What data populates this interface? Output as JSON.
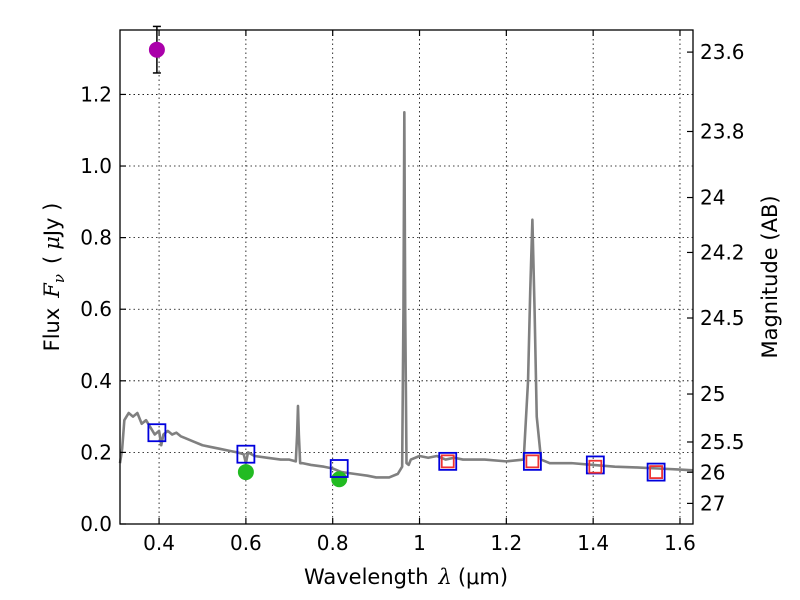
{
  "chart_data": {
    "type": "line",
    "xlabel": "Wavelength",
    "xlabel_symbol": "λ",
    "xlabel_unit": "(μm)",
    "ylabel": "Flux",
    "ylabel_symbol": "F",
    "ylabel_symbol_sub": "ν",
    "ylabel_unit_open": "(",
    "ylabel_unit_mu": "μ",
    "ylabel_unit_rest": "Jy )",
    "y2label": "Magnitude (AB)",
    "xlim": [
      0.31,
      1.63
    ],
    "ylim": [
      0.0,
      1.38
    ],
    "grid": true,
    "x_ticks": [
      {
        "value": 0.4,
        "label": "0.4"
      },
      {
        "value": 0.6,
        "label": "0.6"
      },
      {
        "value": 0.8,
        "label": "0.8"
      },
      {
        "value": 1.0,
        "label": "1"
      },
      {
        "value": 1.2,
        "label": "1.2"
      },
      {
        "value": 1.4,
        "label": "1.4"
      },
      {
        "value": 1.6,
        "label": "1.6"
      }
    ],
    "y_ticks": [
      {
        "value": 0.0,
        "label": "0.0"
      },
      {
        "value": 0.2,
        "label": "0.2"
      },
      {
        "value": 0.4,
        "label": "0.4"
      },
      {
        "value": 0.6,
        "label": "0.6"
      },
      {
        "value": 0.8,
        "label": "0.8"
      },
      {
        "value": 1.0,
        "label": "1.0"
      },
      {
        "value": 1.2,
        "label": "1.2"
      }
    ],
    "y2_ticks": [
      {
        "value": 23.6,
        "label": "23.6"
      },
      {
        "value": 23.8,
        "label": "23.8"
      },
      {
        "value": 24.0,
        "label": "24"
      },
      {
        "value": 24.2,
        "label": "24.2"
      },
      {
        "value": 24.5,
        "label": "24.5"
      },
      {
        "value": 25.0,
        "label": "25"
      },
      {
        "value": 25.5,
        "label": "25.5"
      },
      {
        "value": 26.0,
        "label": "26"
      },
      {
        "value": 27.0,
        "label": "27"
      }
    ],
    "spectrum": {
      "color": "#808080",
      "x": [
        0.31,
        0.315,
        0.32,
        0.325,
        0.33,
        0.34,
        0.35,
        0.36,
        0.37,
        0.38,
        0.39,
        0.4,
        0.405,
        0.41,
        0.42,
        0.43,
        0.44,
        0.45,
        0.46,
        0.48,
        0.5,
        0.52,
        0.54,
        0.56,
        0.58,
        0.595,
        0.6,
        0.605,
        0.62,
        0.65,
        0.68,
        0.7,
        0.715,
        0.718,
        0.72,
        0.722,
        0.725,
        0.73,
        0.75,
        0.78,
        0.8,
        0.82,
        0.85,
        0.88,
        0.9,
        0.93,
        0.95,
        0.96,
        0.963,
        0.965,
        0.967,
        0.97,
        0.975,
        0.98,
        1.0,
        1.02,
        1.04,
        1.06,
        1.08,
        1.1,
        1.15,
        1.2,
        1.24,
        1.25,
        1.255,
        1.26,
        1.265,
        1.27,
        1.28,
        1.3,
        1.35,
        1.4,
        1.45,
        1.5,
        1.55,
        1.6,
        1.63
      ],
      "y": [
        0.17,
        0.21,
        0.29,
        0.3,
        0.31,
        0.3,
        0.31,
        0.28,
        0.29,
        0.27,
        0.25,
        0.26,
        0.22,
        0.25,
        0.26,
        0.25,
        0.255,
        0.245,
        0.24,
        0.23,
        0.22,
        0.215,
        0.21,
        0.205,
        0.2,
        0.195,
        0.17,
        0.2,
        0.19,
        0.185,
        0.18,
        0.18,
        0.175,
        0.25,
        0.33,
        0.25,
        0.17,
        0.17,
        0.165,
        0.16,
        0.155,
        0.145,
        0.14,
        0.135,
        0.13,
        0.13,
        0.14,
        0.16,
        0.6,
        1.15,
        0.6,
        0.17,
        0.165,
        0.18,
        0.19,
        0.185,
        0.19,
        0.18,
        0.185,
        0.18,
        0.18,
        0.175,
        0.18,
        0.4,
        0.65,
        0.85,
        0.6,
        0.3,
        0.18,
        0.17,
        0.17,
        0.165,
        0.16,
        0.158,
        0.155,
        0.152,
        0.15
      ]
    },
    "series": [
      {
        "marker": "circle",
        "color": "#aa00aa",
        "points": [
          {
            "x": 0.395,
            "y": 1.325,
            "err": 0.065
          }
        ]
      },
      {
        "marker": "circle",
        "color": "#22bb22",
        "points": [
          {
            "x": 0.6,
            "y": 0.145,
            "err": 0.015
          },
          {
            "x": 0.815,
            "y": 0.125,
            "err": 0.013
          }
        ]
      },
      {
        "marker": "square-open",
        "color": "#0000dd",
        "points": [
          {
            "x": 0.395,
            "y": 0.255
          },
          {
            "x": 0.6,
            "y": 0.195
          },
          {
            "x": 0.815,
            "y": 0.155
          },
          {
            "x": 1.065,
            "y": 0.175
          },
          {
            "x": 1.26,
            "y": 0.175
          },
          {
            "x": 1.405,
            "y": 0.165
          },
          {
            "x": 1.545,
            "y": 0.145
          }
        ]
      },
      {
        "marker": "square-open",
        "color": "#ee3333",
        "points": [
          {
            "x": 1.065,
            "y": 0.175
          },
          {
            "x": 1.26,
            "y": 0.175
          },
          {
            "x": 1.405,
            "y": 0.16
          },
          {
            "x": 1.545,
            "y": 0.145
          }
        ]
      }
    ]
  }
}
